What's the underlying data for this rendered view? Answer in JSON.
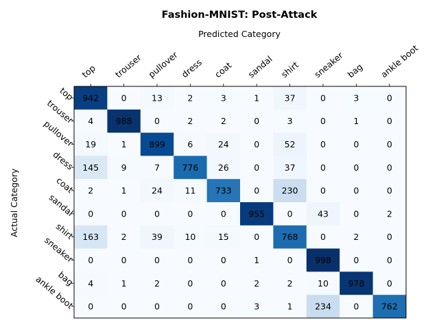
{
  "chart_data": {
    "type": "heatmap",
    "title": "Fashion-MNIST: Post-Attack",
    "xlabel": "Predicted Category",
    "ylabel": "Actual Category",
    "x_categories": [
      "top",
      "trouser",
      "pullover",
      "dress",
      "coat",
      "sandal",
      "shirt",
      "sneaker",
      "bag",
      "ankle boot"
    ],
    "y_categories": [
      "top",
      "trouser",
      "pullover",
      "dress",
      "coat",
      "sandal",
      "shirt",
      "sneaker",
      "bag",
      "ankle boot"
    ],
    "values": [
      [
        942,
        0,
        13,
        2,
        3,
        1,
        37,
        0,
        3,
        0
      ],
      [
        4,
        988,
        0,
        2,
        2,
        0,
        3,
        0,
        1,
        0
      ],
      [
        19,
        1,
        899,
        6,
        24,
        0,
        52,
        0,
        0,
        0
      ],
      [
        145,
        9,
        7,
        776,
        26,
        0,
        37,
        0,
        0,
        0
      ],
      [
        2,
        1,
        24,
        11,
        733,
        0,
        230,
        0,
        0,
        0
      ],
      [
        0,
        0,
        0,
        0,
        0,
        955,
        0,
        43,
        0,
        2
      ],
      [
        163,
        2,
        39,
        10,
        15,
        0,
        768,
        0,
        2,
        0
      ],
      [
        0,
        0,
        0,
        0,
        0,
        1,
        0,
        998,
        0,
        0
      ],
      [
        4,
        1,
        2,
        0,
        0,
        2,
        2,
        10,
        978,
        0
      ],
      [
        0,
        0,
        0,
        0,
        0,
        3,
        1,
        234,
        0,
        762
      ]
    ],
    "colormap": "Blues",
    "x_ticks_position": "top",
    "grid": false
  }
}
